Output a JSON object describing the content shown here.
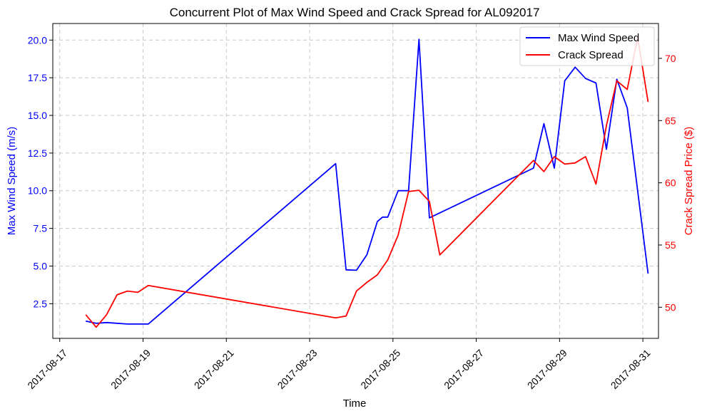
{
  "chart_data": {
    "type": "line",
    "title": "Concurrent Plot of Max Wind Speed and Crack Spread for AL092017",
    "xlabel": "Time",
    "ylabel_left": "Max Wind Speed (m/s)",
    "ylabel_right": "Crack Spread Price ($)",
    "x_ticks": [
      "2017-08-17",
      "2017-08-19",
      "2017-08-21",
      "2017-08-23",
      "2017-08-25",
      "2017-08-27",
      "2017-08-29",
      "2017-08-31"
    ],
    "y_left_ticks": [
      2.5,
      5.0,
      7.5,
      10.0,
      12.5,
      15.0,
      17.5,
      20.0
    ],
    "y_right_ticks": [
      50,
      55,
      60,
      65,
      70
    ],
    "ylim_left": [
      0.2,
      21.1
    ],
    "ylim_right": [
      47.5,
      72.8
    ],
    "xlim": [
      "2017-08-16 20:00",
      "2017-08-31 09:00"
    ],
    "grid": true,
    "legend_position": "upper right",
    "series": [
      {
        "name": "Max Wind Speed",
        "axis": "left",
        "color": "#0000ff",
        "points": [
          [
            "2017-08-17 15:00",
            1.35
          ],
          [
            "2017-08-17 21:00",
            1.2
          ],
          [
            "2017-08-18 03:00",
            1.25
          ],
          [
            "2017-08-18 15:00",
            1.15
          ],
          [
            "2017-08-19 03:00",
            1.15
          ],
          [
            "2017-08-23 15:00",
            11.8
          ],
          [
            "2017-08-23 21:00",
            4.75
          ],
          [
            "2017-08-24 03:00",
            4.72
          ],
          [
            "2017-08-24 09:00",
            5.75
          ],
          [
            "2017-08-24 15:00",
            7.95
          ],
          [
            "2017-08-24 18:00",
            8.25
          ],
          [
            "2017-08-24 21:00",
            8.25
          ],
          [
            "2017-08-25 03:00",
            10.0
          ],
          [
            "2017-08-25 09:00",
            10.0
          ],
          [
            "2017-08-25 15:00",
            20.05
          ],
          [
            "2017-08-25 21:00",
            8.2
          ],
          [
            "2017-08-28 09:00",
            11.5
          ],
          [
            "2017-08-28 15:00",
            14.45
          ],
          [
            "2017-08-28 21:00",
            11.5
          ],
          [
            "2017-08-29 03:00",
            17.3
          ],
          [
            "2017-08-29 09:00",
            18.2
          ],
          [
            "2017-08-29 15:00",
            17.45
          ],
          [
            "2017-08-29 21:00",
            17.15
          ],
          [
            "2017-08-30 03:00",
            12.75
          ],
          [
            "2017-08-30 09:00",
            17.4
          ],
          [
            "2017-08-30 15:00",
            15.5
          ],
          [
            "2017-08-31 03:00",
            4.5
          ]
        ]
      },
      {
        "name": "Crack Spread",
        "axis": "right",
        "color": "#ff0000",
        "points": [
          [
            "2017-08-17 15:00",
            49.4
          ],
          [
            "2017-08-17 21:00",
            48.4
          ],
          [
            "2017-08-18 03:00",
            49.4
          ],
          [
            "2017-08-18 09:00",
            51.0
          ],
          [
            "2017-08-18 15:00",
            51.3
          ],
          [
            "2017-08-18 21:00",
            51.2
          ],
          [
            "2017-08-19 03:00",
            51.75
          ],
          [
            "2017-08-23 15:00",
            49.15
          ],
          [
            "2017-08-23 21:00",
            49.3
          ],
          [
            "2017-08-24 03:00",
            51.3
          ],
          [
            "2017-08-24 09:00",
            52.0
          ],
          [
            "2017-08-24 15:00",
            52.6
          ],
          [
            "2017-08-24 21:00",
            53.8
          ],
          [
            "2017-08-25 03:00",
            55.8
          ],
          [
            "2017-08-25 09:00",
            59.3
          ],
          [
            "2017-08-25 15:00",
            59.4
          ],
          [
            "2017-08-25 21:00",
            58.5
          ],
          [
            "2017-08-26 03:00",
            54.2
          ],
          [
            "2017-08-28 09:00",
            61.8
          ],
          [
            "2017-08-28 15:00",
            60.9
          ],
          [
            "2017-08-28 21:00",
            62.1
          ],
          [
            "2017-08-29 03:00",
            61.5
          ],
          [
            "2017-08-29 09:00",
            61.6
          ],
          [
            "2017-08-29 15:00",
            62.1
          ],
          [
            "2017-08-29 21:00",
            59.9
          ],
          [
            "2017-08-30 03:00",
            64.6
          ],
          [
            "2017-08-30 09:00",
            68.2
          ],
          [
            "2017-08-30 15:00",
            67.5
          ],
          [
            "2017-08-30 21:00",
            71.7
          ],
          [
            "2017-08-31 03:00",
            66.5
          ]
        ]
      }
    ]
  }
}
